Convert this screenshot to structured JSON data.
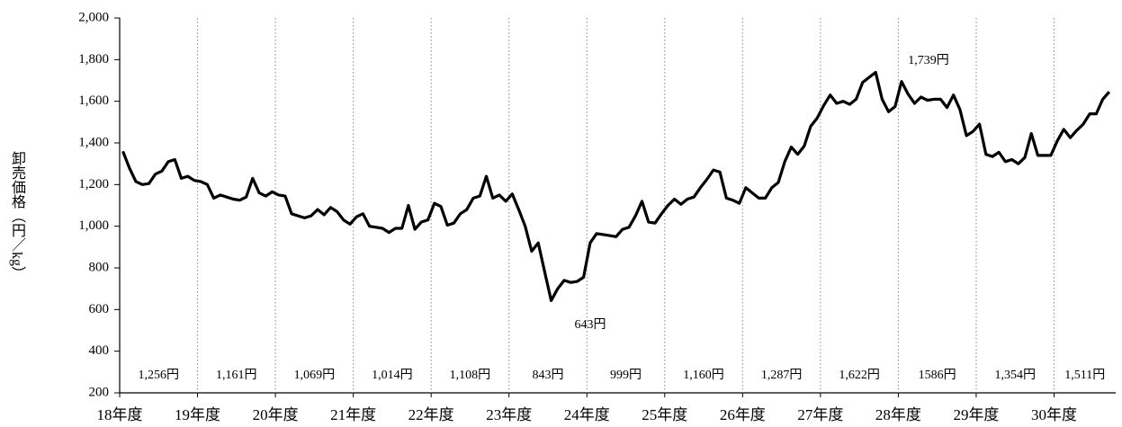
{
  "chart_data": {
    "type": "line",
    "y_label": "卸売価格（円／kg）",
    "categories": [
      "18年度",
      null,
      null,
      null,
      null,
      null,
      null,
      null,
      null,
      null,
      null,
      null,
      "19年度",
      null,
      null,
      null,
      null,
      null,
      null,
      null,
      null,
      null,
      null,
      null,
      "20年度",
      null,
      null,
      null,
      null,
      null,
      null,
      null,
      null,
      null,
      null,
      null,
      "21年度",
      null,
      null,
      null,
      null,
      null,
      null,
      null,
      null,
      null,
      null,
      null,
      "22年度",
      null,
      null,
      null,
      null,
      null,
      null,
      null,
      null,
      null,
      null,
      null,
      "23年度",
      null,
      null,
      null,
      null,
      null,
      null,
      null,
      null,
      null,
      null,
      null,
      "24年度",
      null,
      null,
      null,
      null,
      null,
      null,
      null,
      null,
      null,
      null,
      null,
      "25年度",
      null,
      null,
      null,
      null,
      null,
      null,
      null,
      null,
      null,
      null,
      null,
      "26年度",
      null,
      null,
      null,
      null,
      null,
      null,
      null,
      null,
      null,
      null,
      null,
      "27年度",
      null,
      null,
      null,
      null,
      null,
      null,
      null,
      null,
      null,
      null,
      null,
      "28年度",
      null,
      null,
      null,
      null,
      null,
      null,
      null,
      null,
      null,
      null,
      null,
      "29年度",
      null,
      null,
      null,
      null,
      null,
      null,
      null,
      null,
      null,
      null,
      null,
      "30年度",
      null,
      null,
      null,
      null,
      null,
      null,
      null,
      null
    ],
    "series": [
      {
        "color": "#000000",
        "values": [
          1360,
          1280,
          1215,
          1200,
          1205,
          1250,
          1265,
          1310,
          1320,
          1230,
          1240,
          1220,
          1215,
          1200,
          1135,
          1150,
          1140,
          1130,
          1125,
          1140,
          1230,
          1160,
          1145,
          1165,
          1150,
          1145,
          1060,
          1050,
          1040,
          1050,
          1080,
          1055,
          1090,
          1070,
          1030,
          1010,
          1045,
          1060,
          1000,
          995,
          990,
          970,
          990,
          990,
          1100,
          985,
          1020,
          1030,
          1110,
          1095,
          1005,
          1015,
          1060,
          1080,
          1135,
          1145,
          1240,
          1135,
          1150,
          1120,
          1155,
          1080,
          1000,
          880,
          920,
          780,
          643,
          700,
          740,
          730,
          735,
          755,
          920,
          965,
          960,
          955,
          950,
          985,
          995,
          1050,
          1120,
          1020,
          1015,
          1060,
          1100,
          1130,
          1105,
          1130,
          1140,
          1185,
          1225,
          1270,
          1260,
          1135,
          1125,
          1110,
          1185,
          1160,
          1135,
          1135,
          1185,
          1210,
          1310,
          1380,
          1345,
          1385,
          1480,
          1520,
          1580,
          1630,
          1590,
          1600,
          1585,
          1610,
          1690,
          1715,
          1739,
          1610,
          1550,
          1575,
          1695,
          1635,
          1590,
          1620,
          1605,
          1610,
          1610,
          1570,
          1630,
          1560,
          1435,
          1455,
          1490,
          1345,
          1335,
          1355,
          1310,
          1320,
          1300,
          1330,
          1445,
          1340,
          1340,
          1340,
          1410,
          1465,
          1425,
          1460,
          1490,
          1540,
          1540,
          1610,
          1645
        ]
      }
    ],
    "ylim": [
      200,
      2000
    ],
    "yticks": [
      200,
      400,
      600,
      800,
      {
        "value": 1000,
        "label": "1,000"
      },
      {
        "value": 1200,
        "label": "1,200"
      },
      {
        "value": 1400,
        "label": "1,400"
      },
      {
        "value": 1600,
        "label": "1,600"
      },
      {
        "value": 1800,
        "label": "1,800"
      },
      {
        "value": 2000,
        "label": "2,000"
      }
    ],
    "period_averages": [
      "1,256円",
      "1,161円",
      "1,069円",
      "1,014円",
      "1,108円",
      "843円",
      "999円",
      "1,160円",
      "1,287円",
      "1,622円",
      "1586円",
      "1,354円",
      "1,511円"
    ],
    "annotations": [
      "1,739円",
      "643円"
    ]
  }
}
